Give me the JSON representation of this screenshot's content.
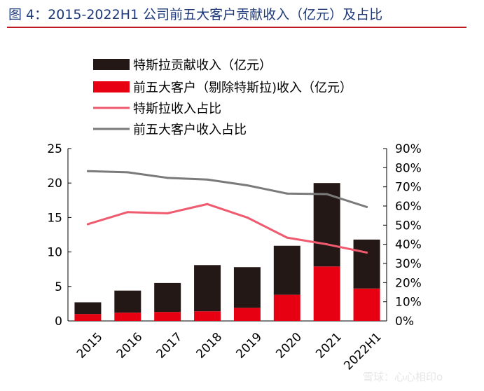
{
  "title": "图 4：2015-2022H1 公司前五大客户贡献收入（亿元）及占比",
  "watermark": "雪球：心心相印o",
  "colors": {
    "tesla_bar": "#231815",
    "others_bar": "#e60012",
    "tesla_share_line": "#f05a6e",
    "top5_share_line": "#7a7a7a",
    "title_text": "#1f3a7a",
    "title_rule": "#c0181f"
  },
  "chart_data": {
    "type": "bar",
    "stacked": true,
    "categories": [
      "2015",
      "2016",
      "2017",
      "2018",
      "2019",
      "2020",
      "2021",
      "2022H1"
    ],
    "series": [
      {
        "name": "特斯拉贡献收入（亿元）",
        "type": "bar",
        "axis": "left",
        "color": "#231815",
        "values": [
          1.7,
          3.2,
          4.2,
          6.7,
          5.9,
          7.1,
          12.1,
          7.1
        ]
      },
      {
        "name": "前五大客户（剔除特斯拉)收入（亿元）",
        "type": "bar",
        "axis": "left",
        "color": "#e60012",
        "values": [
          1.0,
          1.2,
          1.3,
          1.4,
          1.9,
          3.8,
          7.9,
          4.7
        ]
      },
      {
        "name": "特斯拉收入占比",
        "type": "line",
        "axis": "right",
        "color": "#f05a6e",
        "values": [
          0.505,
          0.568,
          0.562,
          0.61,
          0.54,
          0.435,
          0.4,
          0.357
        ]
      },
      {
        "name": "前五大客户收入占比",
        "type": "line",
        "axis": "right",
        "color": "#7a7a7a",
        "values": [
          0.782,
          0.776,
          0.747,
          0.738,
          0.708,
          0.665,
          0.662,
          0.595
        ]
      }
    ],
    "y_left": {
      "min": 0,
      "max": 25,
      "ticks": [
        0,
        5,
        10,
        15,
        20,
        25
      ]
    },
    "y_right": {
      "min": 0,
      "max": 0.9,
      "ticks": [
        0,
        0.1,
        0.2,
        0.3,
        0.4,
        0.5,
        0.6,
        0.7,
        0.8,
        0.9
      ],
      "tick_labels": [
        "0%",
        "10%",
        "20%",
        "30%",
        "40%",
        "50%",
        "60%",
        "70%",
        "80%",
        "90%"
      ]
    },
    "legend_position": "top-left",
    "grid": false,
    "xlabel": "",
    "ylabel": ""
  }
}
